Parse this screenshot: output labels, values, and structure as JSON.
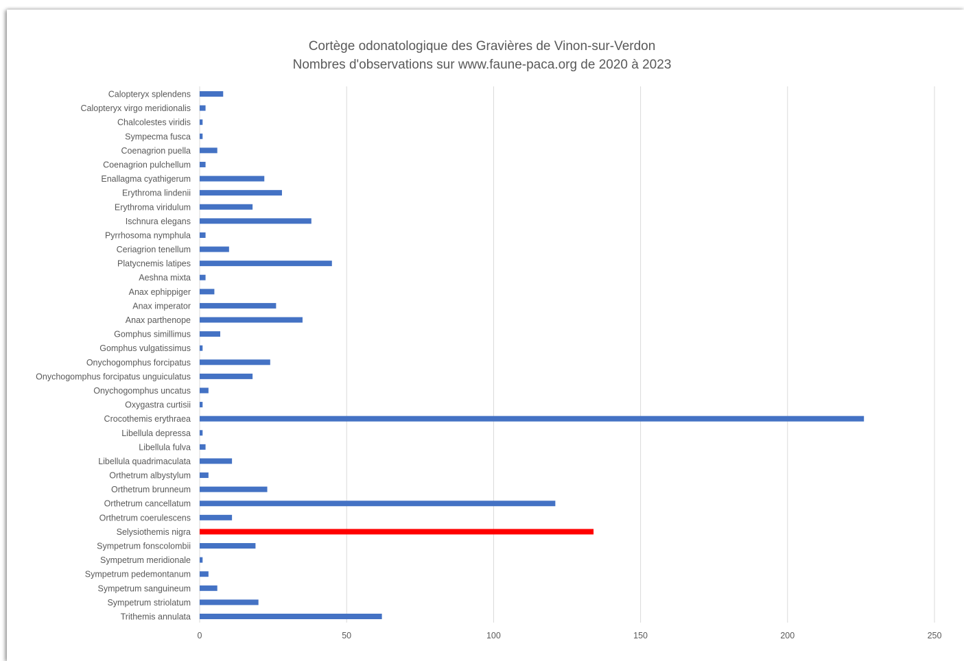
{
  "chart_data": {
    "type": "bar",
    "orientation": "horizontal",
    "title": "Cortège odonatologique des Gravières de Vinon-sur-Verdon",
    "subtitle": "Nombres d'observations sur www.faune-paca.org de 2020 à 2023",
    "xlabel": "",
    "ylabel": "",
    "xlim": [
      0,
      250
    ],
    "xticks": [
      0,
      50,
      100,
      150,
      200,
      250
    ],
    "grid": "vertical",
    "legend": "none",
    "bar_color": "#4472C4",
    "highlight_color": "#FF0000",
    "highlight_category": "Selysiothemis nigra",
    "categories": [
      "Calopteryx splendens",
      "Calopteryx virgo meridionalis",
      "Chalcolestes viridis",
      "Sympecma fusca",
      "Coenagrion puella",
      "Coenagrion pulchellum",
      "Enallagma cyathigerum",
      "Erythroma lindenii",
      "Erythroma viridulum",
      "Ischnura elegans",
      "Pyrrhosoma nymphula",
      "Ceriagrion tenellum",
      "Platycnemis latipes",
      "Aeshna mixta",
      "Anax ephippiger",
      "Anax imperator",
      "Anax parthenope",
      "Gomphus simillimus",
      "Gomphus vulgatissimus",
      "Onychogomphus forcipatus",
      "Onychogomphus forcipatus unguiculatus",
      "Onychogomphus uncatus",
      "Oxygastra curtisii",
      "Crocothemis erythraea",
      "Libellula depressa",
      "Libellula fulva",
      "Libellula quadrimaculata",
      "Orthetrum albystylum",
      "Orthetrum brunneum",
      "Orthetrum cancellatum",
      "Orthetrum coerulescens",
      "Selysiothemis nigra",
      "Sympetrum fonscolombii",
      "Sympetrum meridionale",
      "Sympetrum pedemontanum",
      "Sympetrum sanguineum",
      "Sympetrum striolatum",
      "Trithemis annulata"
    ],
    "values": [
      8,
      2,
      1,
      1,
      6,
      2,
      22,
      28,
      18,
      38,
      2,
      10,
      45,
      2,
      5,
      26,
      35,
      7,
      1,
      24,
      18,
      3,
      1,
      226,
      1,
      2,
      11,
      3,
      23,
      121,
      11,
      134,
      19,
      1,
      3,
      6,
      20,
      62
    ]
  }
}
